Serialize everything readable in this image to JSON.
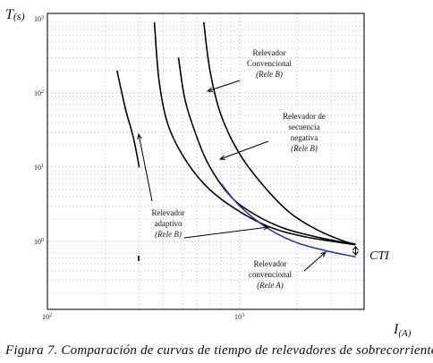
{
  "caption": "Figura 7. Comparación de curvas de tiempo de relevadores de sobrecorriente",
  "chart_data": {
    "type": "line",
    "x_scale": "log",
    "y_scale": "log",
    "xlim": [
      100,
      5000
    ],
    "ylim": [
      0.3,
      1000
    ],
    "grid": true,
    "y_axis_label": {
      "main": "T",
      "sub": "(s)"
    },
    "x_axis_label": {
      "main": "I",
      "sub": "(A)"
    },
    "x_ticks": [
      {
        "value": 100,
        "base": "10",
        "exp": "2"
      },
      {
        "value": 1000,
        "base": "10",
        "exp": "3"
      }
    ],
    "y_ticks": [
      {
        "value": 1,
        "base": "10",
        "exp": "0"
      },
      {
        "value": 10,
        "base": "10",
        "exp": "1"
      },
      {
        "value": 100,
        "base": "10",
        "exp": "2"
      },
      {
        "value": 1000,
        "base": "10",
        "exp": "3"
      }
    ],
    "series": [
      {
        "id": "rele-b-conventional",
        "color": "#000000",
        "points": [
          [
            650,
            900
          ],
          [
            700,
            200
          ],
          [
            800,
            50
          ],
          [
            1000,
            15
          ],
          [
            1300,
            6
          ],
          [
            1800,
            2.5
          ],
          [
            2500,
            1.45
          ],
          [
            3500,
            1.0
          ],
          [
            4000,
            0.92
          ]
        ]
      },
      {
        "id": "secuencia-negativa",
        "color": "#000000",
        "points": [
          [
            480,
            300
          ],
          [
            520,
            80
          ],
          [
            600,
            25
          ],
          [
            700,
            10
          ],
          [
            900,
            4
          ],
          [
            1200,
            2.3
          ],
          [
            1700,
            1.5
          ],
          [
            2500,
            1.15
          ],
          [
            4000,
            0.9
          ]
        ]
      },
      {
        "id": "outer-curve",
        "color": "#000000",
        "points": [
          [
            360,
            900
          ],
          [
            380,
            150
          ],
          [
            420,
            40
          ],
          [
            500,
            15
          ],
          [
            650,
            6
          ],
          [
            900,
            3
          ],
          [
            1400,
            1.6
          ],
          [
            2200,
            1.15
          ],
          [
            4000,
            0.9
          ]
        ]
      },
      {
        "id": "adaptive-steep",
        "color": "#000000",
        "points": [
          [
            230,
            200
          ],
          [
            255,
            60
          ],
          [
            280,
            25
          ],
          [
            300,
            10
          ]
        ]
      },
      {
        "id": "rele-a-conventional",
        "color": "#2f3f9a",
        "points": [
          [
            800,
            6
          ],
          [
            1000,
            3
          ],
          [
            1400,
            1.5
          ],
          [
            2000,
            0.95
          ],
          [
            3000,
            0.72
          ],
          [
            4000,
            0.62
          ]
        ]
      }
    ],
    "annotations": [
      {
        "id": "rele-b",
        "lines": [
          "Relevador",
          "Convencional"
        ],
        "italic_line": "(Rele  B)"
      },
      {
        "id": "secuencia-negativa",
        "lines": [
          "Relevador de",
          "secuencia",
          "negativa"
        ],
        "italic_line": "(Rele B)"
      },
      {
        "id": "adaptivo",
        "lines": [
          "Relevador",
          "adaptivo"
        ],
        "italic_line": "(Rele B)"
      },
      {
        "id": "rele-a",
        "lines": [
          "Relevador",
          "convencional"
        ],
        "italic_line": "(Rele A)"
      }
    ],
    "cti_label": "CTI"
  }
}
